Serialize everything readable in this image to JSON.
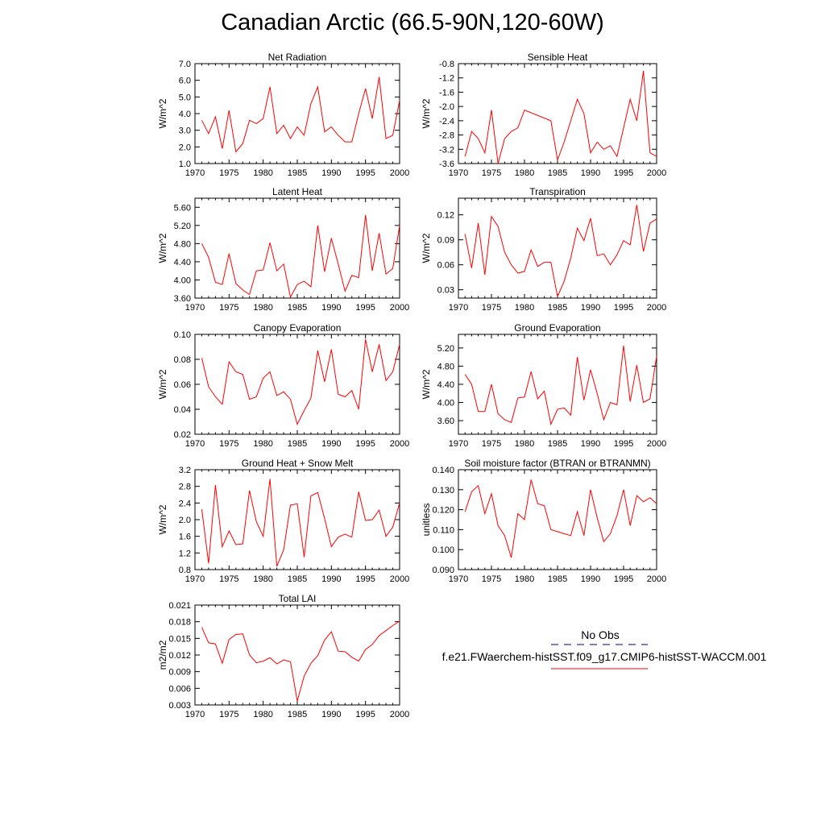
{
  "title": "Canadian Arctic (66.5-90N,120-60W)",
  "colors": {
    "model": "#ff0000",
    "obs": "#00007f",
    "axis": "#000000"
  },
  "legend": {
    "obs_label": "No Obs",
    "model_label": "f.e21.FWaerchem-histSST.f09_g17.CMIP6-histSST-WACCM.001"
  },
  "chart_data": [
    {
      "type": "line",
      "title": "Net Radiation",
      "ylabel": "W/m^2",
      "xlim": [
        1970,
        2000
      ],
      "ylim": [
        1.0,
        7.0
      ],
      "xticks": [
        "1970",
        "1975",
        "1980",
        "1985",
        "1990",
        "1995",
        "2000"
      ],
      "yticks": [
        "1.0",
        "2.0",
        "3.0",
        "4.0",
        "5.0",
        "6.0",
        "7.0"
      ],
      "x": [
        1971,
        1972,
        1973,
        1974,
        1975,
        1976,
        1977,
        1978,
        1979,
        1980,
        1981,
        1982,
        1983,
        1984,
        1985,
        1986,
        1987,
        1988,
        1989,
        1990,
        1991,
        1992,
        1993,
        1994,
        1995,
        1996,
        1997,
        1998,
        1999,
        2000
      ],
      "series": [
        {
          "values": [
            3.6,
            2.8,
            3.8,
            1.9,
            4.2,
            1.7,
            2.2,
            3.6,
            3.4,
            3.7,
            5.6,
            2.8,
            3.3,
            2.5,
            3.2,
            2.7,
            4.6,
            5.6,
            2.9,
            3.2,
            2.7,
            2.3,
            2.3,
            4.0,
            5.5,
            3.7,
            6.2,
            2.5,
            2.7,
            4.8
          ]
        }
      ]
    },
    {
      "type": "line",
      "title": "Sensible Heat",
      "ylabel": "W/m^2",
      "xlim": [
        1970,
        2000
      ],
      "ylim": [
        -3.6,
        -0.8
      ],
      "xticks": [
        "1970",
        "1975",
        "1980",
        "1985",
        "1990",
        "1995",
        "2000"
      ],
      "yticks": [
        "-3.6",
        "-3.2",
        "-2.8",
        "-2.4",
        "-2.0",
        "-1.6",
        "-1.2",
        "-0.8"
      ],
      "x": [
        1971,
        1972,
        1973,
        1974,
        1975,
        1976,
        1977,
        1978,
        1979,
        1980,
        1984,
        1985,
        1986,
        1987,
        1988,
        1989,
        1990,
        1991,
        1992,
        1993,
        1994,
        1995,
        1996,
        1997,
        1998,
        1999,
        2000
      ],
      "series": [
        {
          "values": [
            -3.4,
            -2.7,
            -2.9,
            -3.3,
            -2.1,
            -3.6,
            -2.9,
            -2.7,
            -2.6,
            -2.1,
            -2.4,
            -3.5,
            -3.0,
            -2.4,
            -1.8,
            -2.2,
            -3.3,
            -3.0,
            -3.2,
            -3.1,
            -3.4,
            -2.6,
            -1.8,
            -2.4,
            -1.0,
            -3.3,
            -3.4
          ]
        }
      ]
    },
    {
      "type": "line",
      "title": "Latent Heat",
      "ylabel": "W/m^2",
      "xlim": [
        1970,
        2000
      ],
      "ylim": [
        3.6,
        5.8
      ],
      "xticks": [
        "1970",
        "1975",
        "1980",
        "1985",
        "1990",
        "1995",
        "2000"
      ],
      "yticks": [
        "3.60",
        "4.00",
        "4.40",
        "4.80",
        "5.20",
        "5.60"
      ],
      "x": [
        1971,
        1972,
        1973,
        1974,
        1975,
        1976,
        1977,
        1978,
        1979,
        1980,
        1981,
        1982,
        1983,
        1984,
        1985,
        1986,
        1987,
        1988,
        1989,
        1990,
        1991,
        1992,
        1993,
        1994,
        1995,
        1996,
        1997,
        1998,
        1999,
        2000
      ],
      "series": [
        {
          "values": [
            4.8,
            4.5,
            3.95,
            3.9,
            4.58,
            3.92,
            3.78,
            3.68,
            4.2,
            4.22,
            4.82,
            4.2,
            4.35,
            3.62,
            3.9,
            3.97,
            3.85,
            5.2,
            4.18,
            4.92,
            4.35,
            3.75,
            4.1,
            4.05,
            5.43,
            4.2,
            5.03,
            4.13,
            4.25,
            5.2
          ]
        }
      ]
    },
    {
      "type": "line",
      "title": "Transpiration",
      "ylabel": "W/m^2",
      "xlim": [
        1970,
        2000
      ],
      "ylim": [
        0.02,
        0.14
      ],
      "xticks": [
        "1970",
        "1975",
        "1980",
        "1985",
        "1990",
        "1995",
        "2000"
      ],
      "yticks": [
        "0.03",
        "0.06",
        "0.09",
        "0.12"
      ],
      "x": [
        1971,
        1972,
        1973,
        1974,
        1975,
        1976,
        1977,
        1978,
        1979,
        1980,
        1981,
        1982,
        1983,
        1984,
        1985,
        1986,
        1987,
        1988,
        1989,
        1990,
        1991,
        1992,
        1993,
        1994,
        1995,
        1996,
        1997,
        1998,
        1999,
        2000
      ],
      "series": [
        {
          "values": [
            0.097,
            0.056,
            0.11,
            0.048,
            0.118,
            0.106,
            0.075,
            0.06,
            0.05,
            0.052,
            0.078,
            0.058,
            0.063,
            0.063,
            0.022,
            0.04,
            0.068,
            0.104,
            0.089,
            0.116,
            0.071,
            0.073,
            0.06,
            0.072,
            0.089,
            0.084,
            0.132,
            0.076,
            0.11,
            0.115
          ]
        }
      ]
    },
    {
      "type": "line",
      "title": "Canopy Evaporation",
      "ylabel": "W/m^2",
      "xlim": [
        1970,
        2000
      ],
      "ylim": [
        0.02,
        0.1
      ],
      "xticks": [
        "1970",
        "1975",
        "1980",
        "1985",
        "1990",
        "1995",
        "2000"
      ],
      "yticks": [
        "0.02",
        "0.04",
        "0.06",
        "0.08",
        "0.10"
      ],
      "x": [
        1971,
        1972,
        1973,
        1974,
        1975,
        1976,
        1977,
        1978,
        1979,
        1980,
        1981,
        1982,
        1983,
        1984,
        1985,
        1986,
        1987,
        1988,
        1989,
        1990,
        1991,
        1992,
        1993,
        1994,
        1995,
        1996,
        1997,
        1998,
        1999,
        2000
      ],
      "series": [
        {
          "values": [
            0.081,
            0.058,
            0.05,
            0.044,
            0.078,
            0.07,
            0.068,
            0.048,
            0.05,
            0.065,
            0.07,
            0.051,
            0.054,
            0.048,
            0.028,
            0.039,
            0.049,
            0.087,
            0.062,
            0.088,
            0.052,
            0.05,
            0.055,
            0.04,
            0.096,
            0.07,
            0.092,
            0.063,
            0.07,
            0.092
          ]
        }
      ]
    },
    {
      "type": "line",
      "title": "Ground Evaporation",
      "ylabel": "W/m^2",
      "xlim": [
        1970,
        2000
      ],
      "ylim": [
        3.3,
        5.5
      ],
      "xticks": [
        "1970",
        "1975",
        "1980",
        "1985",
        "1990",
        "1995",
        "2000"
      ],
      "yticks": [
        "3.60",
        "4.00",
        "4.40",
        "4.80",
        "5.20"
      ],
      "x": [
        1971,
        1972,
        1973,
        1974,
        1975,
        1976,
        1977,
        1978,
        1979,
        1980,
        1981,
        1982,
        1983,
        1984,
        1985,
        1986,
        1987,
        1988,
        1989,
        1990,
        1991,
        1992,
        1993,
        1994,
        1995,
        1996,
        1997,
        1998,
        1999,
        2000
      ],
      "series": [
        {
          "values": [
            4.62,
            4.4,
            3.8,
            3.8,
            4.4,
            3.75,
            3.62,
            3.56,
            4.1,
            4.12,
            4.68,
            4.08,
            4.25,
            3.52,
            3.85,
            3.88,
            3.72,
            5.0,
            4.05,
            4.72,
            4.2,
            3.62,
            4.0,
            3.95,
            5.25,
            4.02,
            4.82,
            4.0,
            4.08,
            5.02
          ]
        }
      ]
    },
    {
      "type": "line",
      "title": "Ground Heat + Snow Melt",
      "ylabel": "W/m^2",
      "xlim": [
        1970,
        2000
      ],
      "ylim": [
        0.8,
        3.2
      ],
      "xticks": [
        "1970",
        "1975",
        "1980",
        "1985",
        "1990",
        "1995",
        "2000"
      ],
      "yticks": [
        "0.8",
        "1.2",
        "1.6",
        "2.0",
        "2.4",
        "2.8",
        "3.2"
      ],
      "x": [
        1971,
        1972,
        1973,
        1974,
        1975,
        1976,
        1977,
        1978,
        1979,
        1980,
        1981,
        1982,
        1983,
        1984,
        1985,
        1986,
        1987,
        1988,
        1989,
        1990,
        1991,
        1992,
        1993,
        1994,
        1995,
        1996,
        1997,
        1998,
        1999,
        2000
      ],
      "series": [
        {
          "values": [
            2.25,
            0.95,
            2.83,
            1.35,
            1.73,
            1.4,
            1.42,
            2.7,
            1.95,
            1.6,
            2.98,
            0.88,
            1.28,
            2.35,
            2.38,
            1.1,
            2.57,
            2.65,
            2.03,
            1.35,
            1.58,
            1.65,
            1.58,
            2.67,
            1.98,
            2.0,
            2.23,
            1.6,
            1.82,
            2.4
          ]
        }
      ]
    },
    {
      "type": "line",
      "title": "Soil moisture factor (BTRAN or BTRANMN)",
      "ylabel": "unitless",
      "xlim": [
        1970,
        2000
      ],
      "ylim": [
        0.09,
        0.14
      ],
      "xticks": [
        "1970",
        "1975",
        "1980",
        "1985",
        "1990",
        "1995",
        "2000"
      ],
      "yticks": [
        "0.090",
        "0.100",
        "0.110",
        "0.120",
        "0.130",
        "0.140"
      ],
      "x": [
        1971,
        1972,
        1973,
        1974,
        1975,
        1976,
        1977,
        1978,
        1979,
        1980,
        1981,
        1982,
        1983,
        1984,
        1985,
        1986,
        1987,
        1988,
        1989,
        1990,
        1991,
        1992,
        1993,
        1994,
        1995,
        1996,
        1997,
        1998,
        1999,
        2000
      ],
      "series": [
        {
          "values": [
            0.119,
            0.129,
            0.132,
            0.118,
            0.128,
            0.112,
            0.107,
            0.096,
            0.118,
            0.115,
            0.135,
            0.123,
            0.122,
            0.11,
            0.109,
            0.108,
            0.107,
            0.119,
            0.107,
            0.13,
            0.116,
            0.104,
            0.108,
            0.117,
            0.13,
            0.112,
            0.127,
            0.124,
            0.126,
            0.123
          ]
        }
      ]
    },
    {
      "type": "line",
      "title": "Total LAI",
      "ylabel": "m2/m2",
      "xlim": [
        1970,
        2000
      ],
      "ylim": [
        0.003,
        0.021
      ],
      "xticks": [
        "1970",
        "1975",
        "1980",
        "1985",
        "1990",
        "1995",
        "2000"
      ],
      "yticks": [
        "0.003",
        "0.006",
        "0.009",
        "0.012",
        "0.015",
        "0.018",
        "0.021"
      ],
      "x": [
        1971,
        1972,
        1973,
        1974,
        1975,
        1976,
        1977,
        1978,
        1979,
        1980,
        1981,
        1982,
        1983,
        1984,
        1985,
        1986,
        1987,
        1988,
        1989,
        1990,
        1991,
        1992,
        1993,
        1994,
        1995,
        1996,
        1997,
        1998,
        1999,
        2000
      ],
      "series": [
        {
          "values": [
            0.017,
            0.0142,
            0.014,
            0.0105,
            0.0148,
            0.0157,
            0.0158,
            0.012,
            0.0106,
            0.0109,
            0.0115,
            0.0104,
            0.0111,
            0.0108,
            0.0037,
            0.0082,
            0.0105,
            0.0119,
            0.0147,
            0.0162,
            0.0127,
            0.0126,
            0.0116,
            0.0109,
            0.013,
            0.0139,
            0.0155,
            0.0164,
            0.0173,
            0.0181
          ]
        }
      ]
    }
  ]
}
